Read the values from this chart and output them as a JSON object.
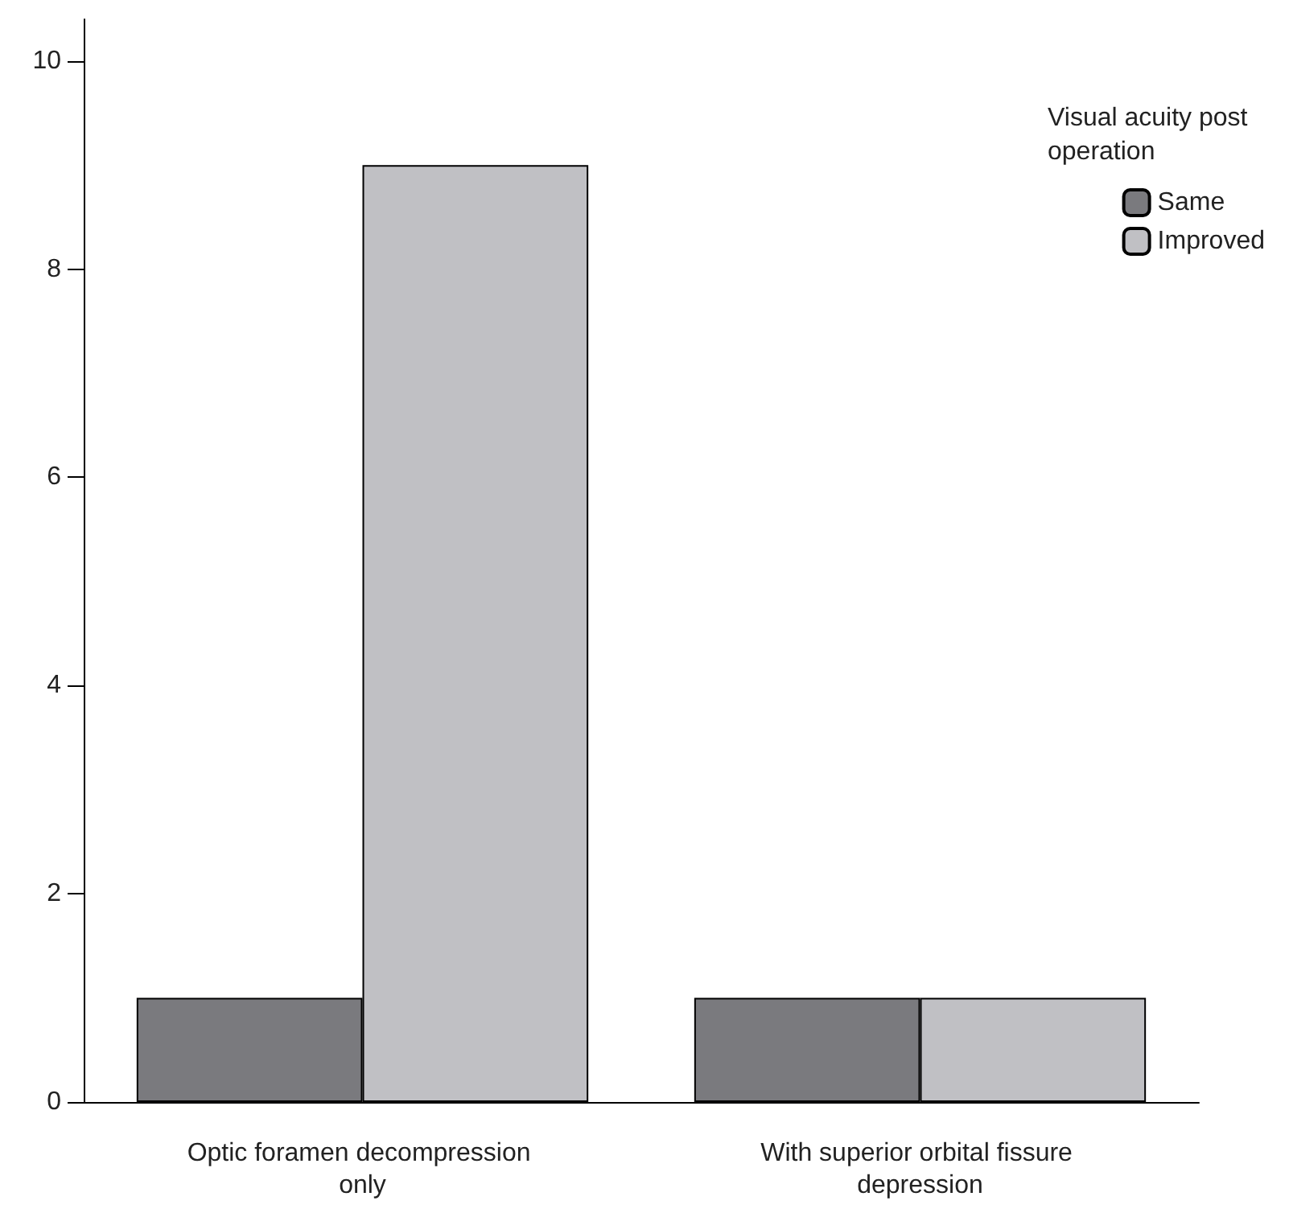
{
  "chart_data": {
    "type": "bar",
    "categories": [
      "Optic foramen decompression only",
      "With superior orbital fissure depression"
    ],
    "series": [
      {
        "name": "Same",
        "color": "#7a7a7e",
        "values": [
          1,
          1
        ]
      },
      {
        "name": "Improved",
        "color": "#c0c0c4",
        "values": [
          9,
          1
        ]
      }
    ],
    "legend_title": "Visual acuity post operation",
    "legend": "top right",
    "ylim": [
      0,
      10.4
    ],
    "yticks": [
      0,
      2,
      4,
      6,
      8,
      10
    ],
    "grid": false
  }
}
